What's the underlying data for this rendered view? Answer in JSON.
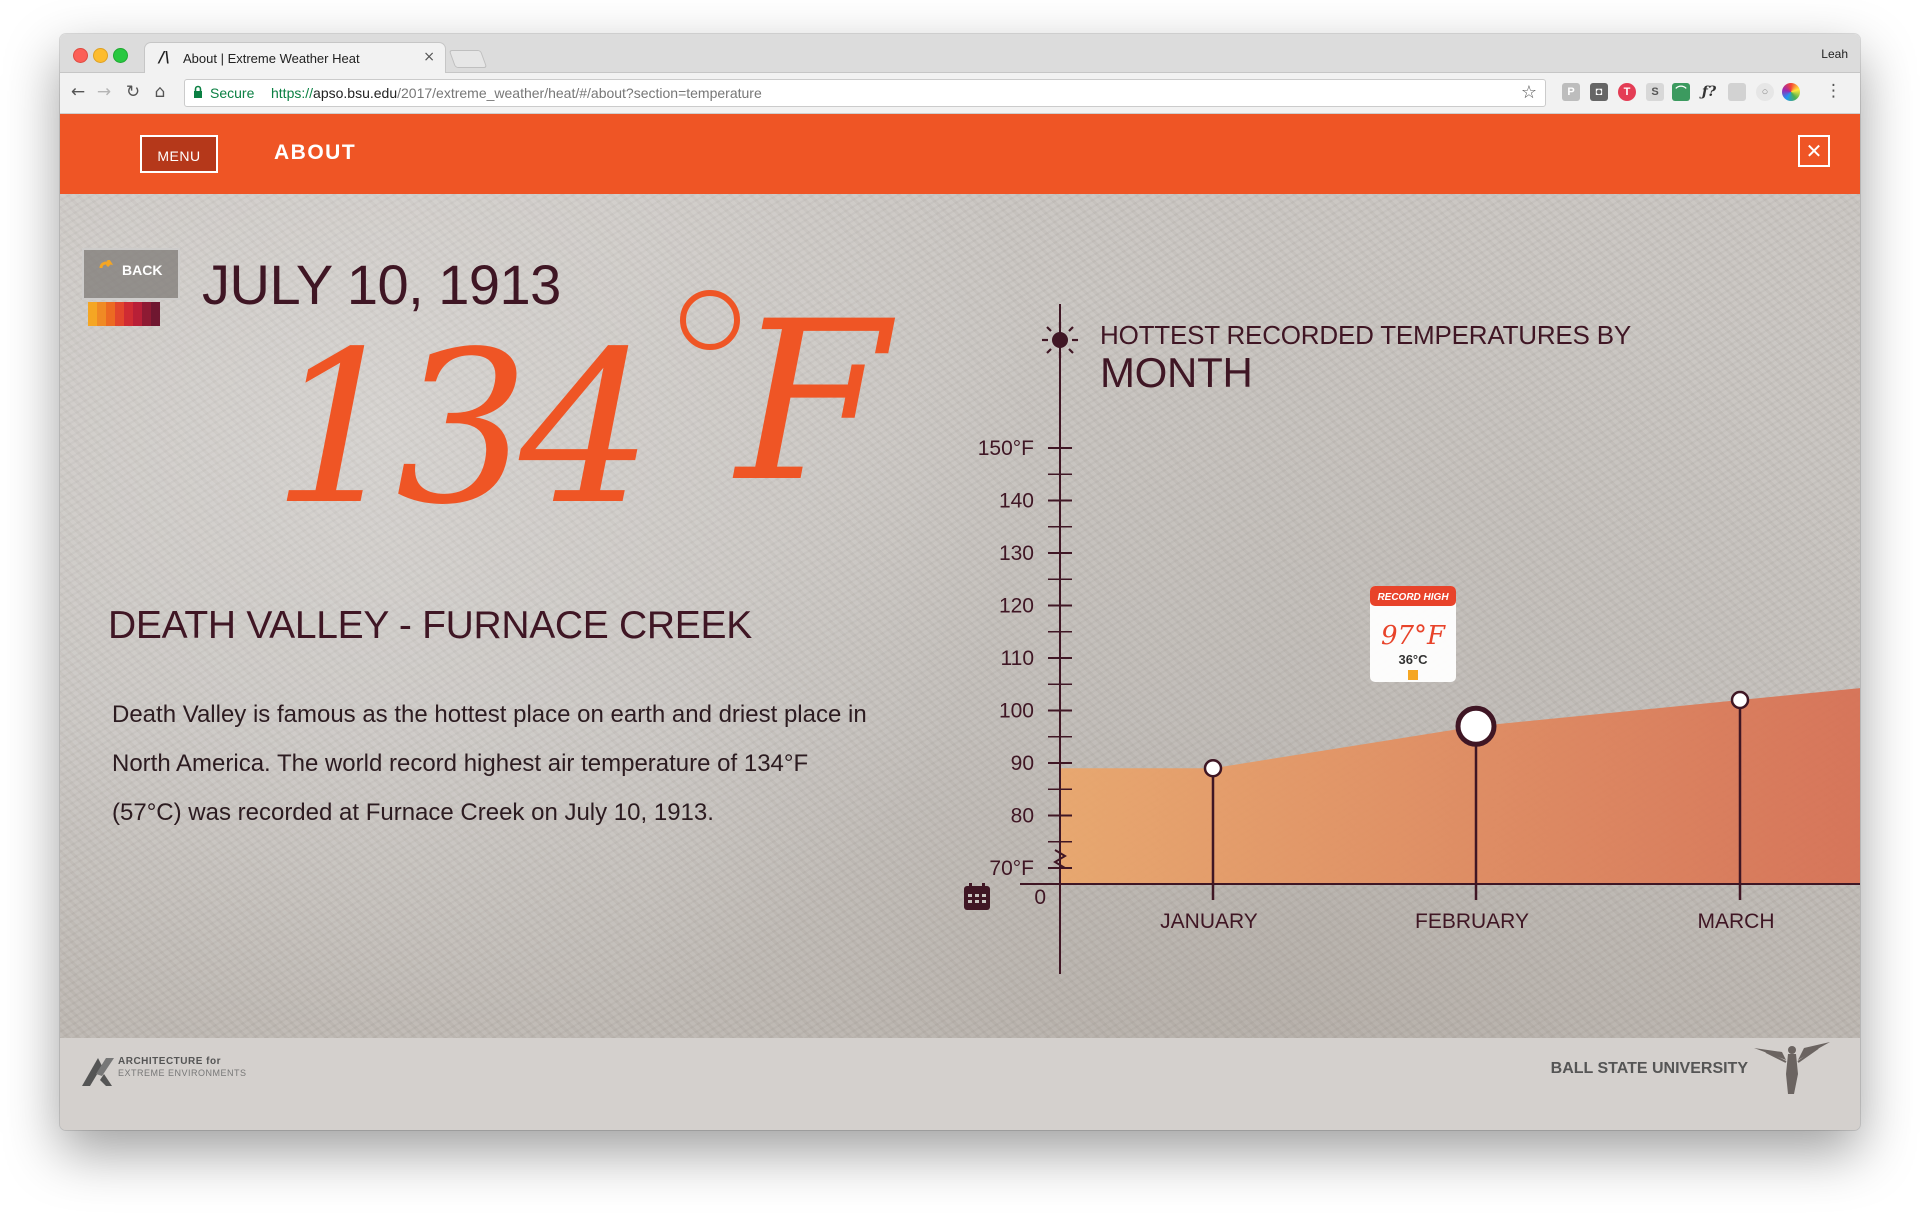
{
  "browser": {
    "tab_title": "About | Extreme Weather Heat",
    "tab_close": "×",
    "profile_name": "Leah",
    "secure_label": "Secure",
    "url_scheme": "https://",
    "url_host": "apso.bsu.edu",
    "url_path": "/2017/extreme_weather/heat/#/about?section=temperature"
  },
  "header": {
    "menu_label": "MENU",
    "page_heading": "ABOUT",
    "close_glyph": "✕"
  },
  "back": {
    "label": "BACK",
    "swatch_colors": [
      "#f5a623",
      "#f08a24",
      "#ec6a22",
      "#e2462c",
      "#cf2b33",
      "#b81f37",
      "#8e1a33",
      "#6f1730"
    ]
  },
  "record": {
    "date": "JULY 10, 1913",
    "temp_value": "134",
    "temp_unit": "F",
    "location": "DEATH VALLEY - FURNACE CREEK",
    "description": "Death Valley is famous as the hottest place on earth and driest place in North America. The world record highest air temperature of 134°F (57°C) was recorded at Furnace Creek on July 10, 1913."
  },
  "chart_title": {
    "line1": "HOTTEST RECORDED TEMPERATURES BY",
    "line2": "MONTH"
  },
  "chart_data": {
    "type": "area",
    "y_tick_labels": [
      {
        "label": "150°F",
        "value": 150
      },
      {
        "label": "140",
        "value": 140
      },
      {
        "label": "130",
        "value": 130
      },
      {
        "label": "120",
        "value": 120
      },
      {
        "label": "110",
        "value": 110
      },
      {
        "label": "100",
        "value": 100
      },
      {
        "label": "90",
        "value": 90
      },
      {
        "label": "80",
        "value": 80
      },
      {
        "label": "70°F",
        "value": 70
      }
    ],
    "zero_label": "0",
    "ylim": [
      65,
      155
    ],
    "categories": [
      "JANUARY",
      "FEBRUARY",
      "MARCH"
    ],
    "values": [
      89,
      97,
      102
    ],
    "highlight": {
      "category": "FEBRUARY",
      "badge_title": "RECORD HIGH",
      "badge_f": "97°F",
      "badge_c": "36°C"
    },
    "colors": {
      "area_start": "#eba66a",
      "area_end": "#d86f52",
      "axis": "#3f1624",
      "accent": "#ef5525"
    }
  },
  "footer": {
    "aee_line1": "ARCHITECTURE for",
    "aee_line2": "EXTREME ENVIRONMENTS",
    "bsu_name": "BALL STATE UNIVERSITY"
  },
  "icons": [
    "sun-icon",
    "calendar-icon",
    "lock-icon",
    "star-icon",
    "close-icon",
    "back-icon"
  ]
}
